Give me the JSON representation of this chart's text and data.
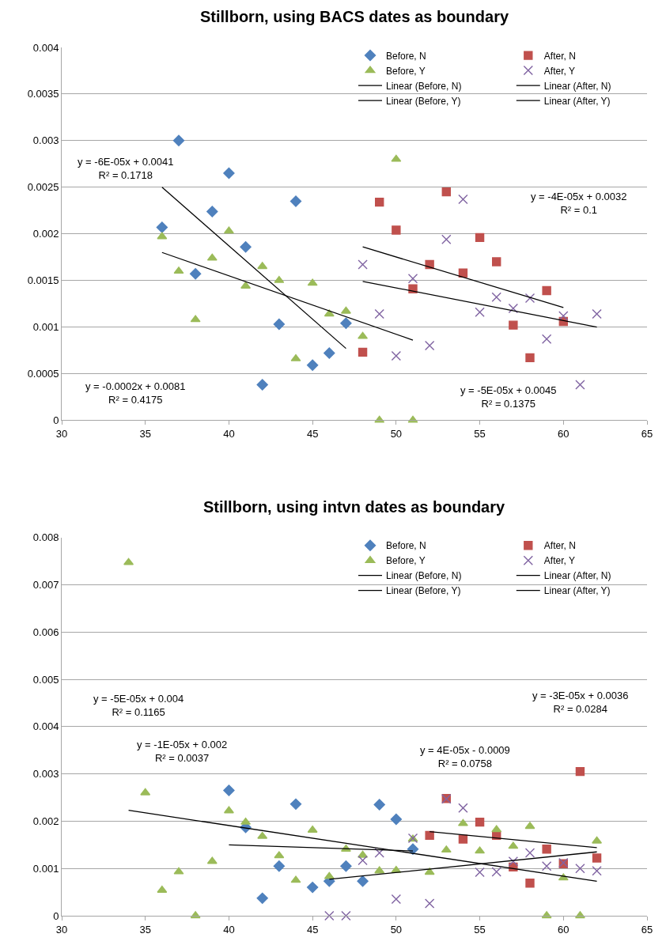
{
  "chart_data": [
    {
      "type": "scatter",
      "title": "Stillborn, using BACS dates as boundary",
      "xlim": [
        30,
        65
      ],
      "xticks": [
        30,
        35,
        40,
        45,
        50,
        55,
        60,
        65
      ],
      "ylim": [
        0,
        0.004
      ],
      "yticks": [
        0,
        0.0005,
        0.001,
        0.0015,
        0.002,
        0.0025,
        0.003,
        0.0035,
        0.004
      ],
      "grid": "y",
      "legend": "top right",
      "annotations": [
        "y = -6E-05x + 0.0041\nR² = 0.1718",
        "y = -0.0002x + 0.0081\nR² = 0.4175",
        "y = -4E-05x + 0.0032\nR² = 0.1",
        "y = -5E-05x + 0.0045\nR² = 0.1375"
      ],
      "series": [
        {
          "name": "Before, N",
          "color": "#4f81bd",
          "marker": "diamond",
          "x": [
            36,
            37,
            38,
            39,
            40,
            41,
            42,
            43,
            44,
            45,
            46,
            47
          ],
          "values": [
            0.00207,
            0.003,
            0.00157,
            0.00224,
            0.00265,
            0.00186,
            0.00038,
            0.00103,
            0.00235,
            0.00059,
            0.00072,
            0.00104
          ]
        },
        {
          "name": "After, N",
          "color": "#c0504d",
          "marker": "square",
          "x": [
            48,
            49,
            50,
            51,
            52,
            53,
            54,
            55,
            56,
            57,
            58,
            59,
            60
          ],
          "values": [
            0.00073,
            0.00234,
            0.00204,
            0.00141,
            0.00167,
            0.00245,
            0.00158,
            0.00196,
            0.0017,
            0.00102,
            0.00067,
            0.00139,
            0.00106
          ]
        },
        {
          "name": "Before, Y",
          "color": "#9bbb59",
          "marker": "triangle",
          "x": [
            36,
            37,
            38,
            39,
            40,
            41,
            42,
            43,
            44,
            45,
            46,
            47,
            48,
            49,
            50,
            51
          ],
          "values": [
            0.00197,
            0.0016,
            0.00108,
            0.00174,
            0.00203,
            0.00144,
            0.00165,
            0.0015,
            0.00066,
            0.00147,
            0.00114,
            0.00117,
            0.0009,
            0,
            0.0028,
            0
          ]
        },
        {
          "name": "After, Y",
          "color": "#8064a2",
          "marker": "cross",
          "x": [
            48,
            49,
            50,
            51,
            52,
            53,
            54,
            55,
            56,
            57,
            58,
            59,
            60,
            61,
            62
          ],
          "values": [
            0.00167,
            0.00114,
            0.00069,
            0.00152,
            0.0008,
            0.00194,
            0.00237,
            0.00116,
            0.00132,
            0.0012,
            0.00131,
            0.00087,
            0.00112,
            0.00038,
            0.00114
          ]
        },
        {
          "name": "Linear (Before, N)",
          "type": "line",
          "color": "#000000",
          "marker": "none",
          "line_style": "solid",
          "x": [
            36,
            47
          ],
          "values": [
            0.0025,
            0.00077
          ]
        },
        {
          "name": "Linear (After, N)",
          "type": "line",
          "color": "#000000",
          "marker": "none",
          "line_style": "solid",
          "x": [
            48,
            60
          ],
          "values": [
            0.00186,
            0.00121
          ]
        },
        {
          "name": "Linear (Before, Y)",
          "type": "line",
          "color": "#000000",
          "marker": "none",
          "line_style": "solid",
          "x": [
            36,
            51
          ],
          "values": [
            0.0018,
            0.00086
          ]
        },
        {
          "name": "Linear (After, Y)",
          "type": "line",
          "color": "#000000",
          "marker": "none",
          "line_style": "solid",
          "x": [
            48,
            62
          ],
          "values": [
            0.00149,
            0.001
          ]
        }
      ]
    },
    {
      "type": "scatter",
      "title": "Stillborn, using intvn dates as boundary",
      "xlim": [
        30,
        65
      ],
      "xticks": [
        30,
        35,
        40,
        45,
        50,
        55,
        60,
        65
      ],
      "ylim": [
        0,
        0.008
      ],
      "yticks": [
        0,
        0.001,
        0.002,
        0.003,
        0.004,
        0.005,
        0.006,
        0.007,
        0.008
      ],
      "grid": "y",
      "legend": "top right",
      "annotations": [
        "y = -5E-05x + 0.004\nR² = 0.1165",
        "y = -1E-05x + 0.002\nR² = 0.0037",
        "y = -3E-05x + 0.0036\nR² = 0.0284",
        "y = 4E-05x - 0.0009\nR² = 0.0758"
      ],
      "series": [
        {
          "name": "Before, N",
          "color": "#4f81bd",
          "marker": "diamond",
          "x": [
            40,
            41,
            42,
            43,
            44,
            45,
            46,
            47,
            48,
            49,
            50,
            51
          ],
          "values": [
            0.00265,
            0.00187,
            0.00037,
            0.00105,
            0.00236,
            0.0006,
            0.00073,
            0.00105,
            0.00073,
            0.00235,
            0.00204,
            0.00141
          ]
        },
        {
          "name": "After, N",
          "color": "#c0504d",
          "marker": "square",
          "x": [
            52,
            53,
            54,
            55,
            56,
            57,
            58,
            59,
            60,
            61,
            62
          ],
          "values": [
            0.0017,
            0.00248,
            0.00162,
            0.00198,
            0.0017,
            0.00103,
            0.00069,
            0.00141,
            0.0011,
            0.00305,
            0.00122
          ]
        },
        {
          "name": "Before, Y",
          "color": "#9bbb59",
          "marker": "triangle",
          "x": [
            34,
            35,
            36,
            37,
            38,
            39,
            40,
            41,
            42,
            43,
            44,
            45,
            46,
            47,
            48,
            49,
            50,
            51,
            52,
            53,
            54,
            55,
            56,
            57,
            58,
            59,
            60,
            61,
            62
          ],
          "values": [
            0.00747,
            0.0026,
            0.00054,
            0.00093,
            0,
            0.00115,
            0.00222,
            0.00198,
            0.00168,
            0.00127,
            0.00075,
            0.00181,
            0.00083,
            0.00141,
            0.00128,
            0.00095,
            0.00096,
            0.00162,
            0.00092,
            0.00139,
            0.00195,
            0.00137,
            0.00182,
            0.00147,
            0.00189,
            0,
            0.0008,
            0,
            0.00158
          ]
        },
        {
          "name": "After, Y",
          "color": "#8064a2",
          "marker": "cross",
          "x": [
            46,
            47,
            48,
            49,
            50,
            51,
            52,
            53,
            54,
            55,
            56,
            57,
            58,
            59,
            60,
            61,
            62
          ],
          "values": [
            0,
            0,
            0.00117,
            0.00133,
            0.00035,
            0.00164,
            0.00026,
            0.00247,
            0.00228,
            0.00092,
            0.00093,
            0.00115,
            0.00133,
            0.00105,
            0.00112,
            0.001,
            0.00095
          ]
        },
        {
          "name": "Linear (Before, N)",
          "type": "line",
          "color": "#000000",
          "marker": "none",
          "line_style": "solid",
          "x": [
            40,
            51
          ],
          "values": [
            0.0015,
            0.00137
          ]
        },
        {
          "name": "Linear (After, N)",
          "type": "line",
          "color": "#000000",
          "marker": "none",
          "line_style": "solid",
          "x": [
            52,
            62
          ],
          "values": [
            0.00178,
            0.00144
          ]
        },
        {
          "name": "Linear (Before, Y)",
          "type": "line",
          "color": "#000000",
          "marker": "none",
          "line_style": "solid",
          "x": [
            34,
            62
          ],
          "values": [
            0.00223,
            0.00073
          ]
        },
        {
          "name": "Linear (After, Y)",
          "type": "line",
          "color": "#000000",
          "marker": "none",
          "line_style": "solid",
          "x": [
            46,
            62
          ],
          "values": [
            0.00077,
            0.00135
          ]
        }
      ]
    }
  ]
}
